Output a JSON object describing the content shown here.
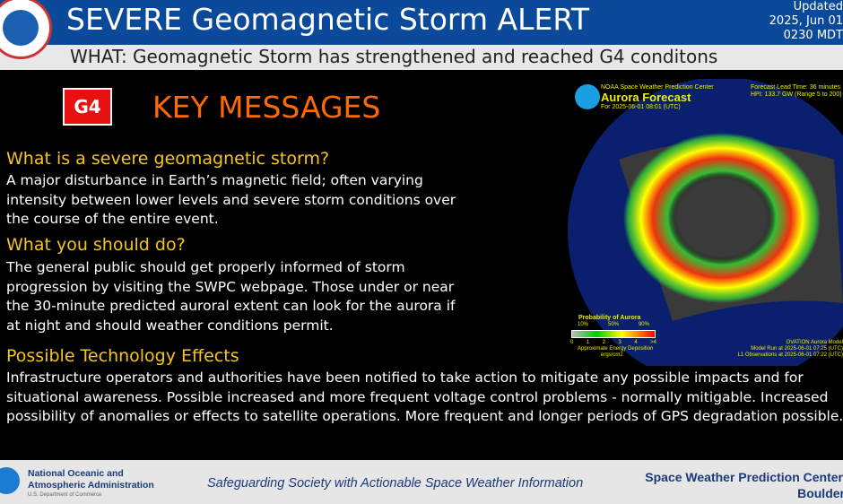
{
  "header": {
    "title": "SEVERE Geomagnetic Storm ALERT",
    "updated": [
      "Updated",
      "2025, Jun 01",
      "0230 MDT"
    ],
    "what": "WHAT: Geomagnetic Storm has strengthened and reached G4 conditons"
  },
  "badge": "G4",
  "key_messages_title": "KEY MESSAGES",
  "sections": [
    {
      "heading": "What is a severe geomagnetic storm?",
      "body": "A major disturbance in Earth’s magnetic field; often varying intensity between lower levels and severe storm conditions over the course of the entire event."
    },
    {
      "heading": "What you should do?",
      "body": "The general public should get properly informed of storm progression by visiting the SWPC webpage. Those under or near the 30-minute predicted auroral extent can look for the aurora if at night and should weather conditions permit."
    },
    {
      "heading": "Possible Technology Effects",
      "body": "Infrastructure operators and authorities have been notified to take action to mitigate any possible impacts and for situational awareness. Possible increased and more frequent voltage control problems - normally mitigable. Increased possibility of anomalies or effects to satellite operations. More frequent and longer periods of GPS degradation possible."
    }
  ],
  "aurora": {
    "center": "NOAA Space Weather Prediction Center",
    "title": "Aurora Forecast",
    "for": "For 2025-06-01 08:01 (UTC)",
    "lead": "Forecast Lead Time:  36 minutes",
    "hpi": "HPI: 133.7 GW (Range 5 to 200)",
    "legend_title": "Probability of Aurora",
    "pct": [
      "10%",
      "50%",
      "90%"
    ],
    "scale": [
      "0",
      "1",
      "2",
      "3",
      "4",
      ">4"
    ],
    "legend_unit": "Approximate Energy Deposition",
    "legend_unit2": "ergs/cm2",
    "model": "OVATION Aurora Model",
    "run": "Model Run at 2025-06-01 07:25 (UTC)",
    "obs": "L1 Observations at 2025-06-01 07:22 (UTC)"
  },
  "footer": {
    "org1": "National Oceanic and",
    "org2": "Atmospheric Administration",
    "dept": "U.S. Department of Commerce",
    "slogan": "Safeguarding Society with Actionable Space Weather Information",
    "swpc": "Space Weather Prediction Center",
    "city": "Boulder, CO"
  }
}
